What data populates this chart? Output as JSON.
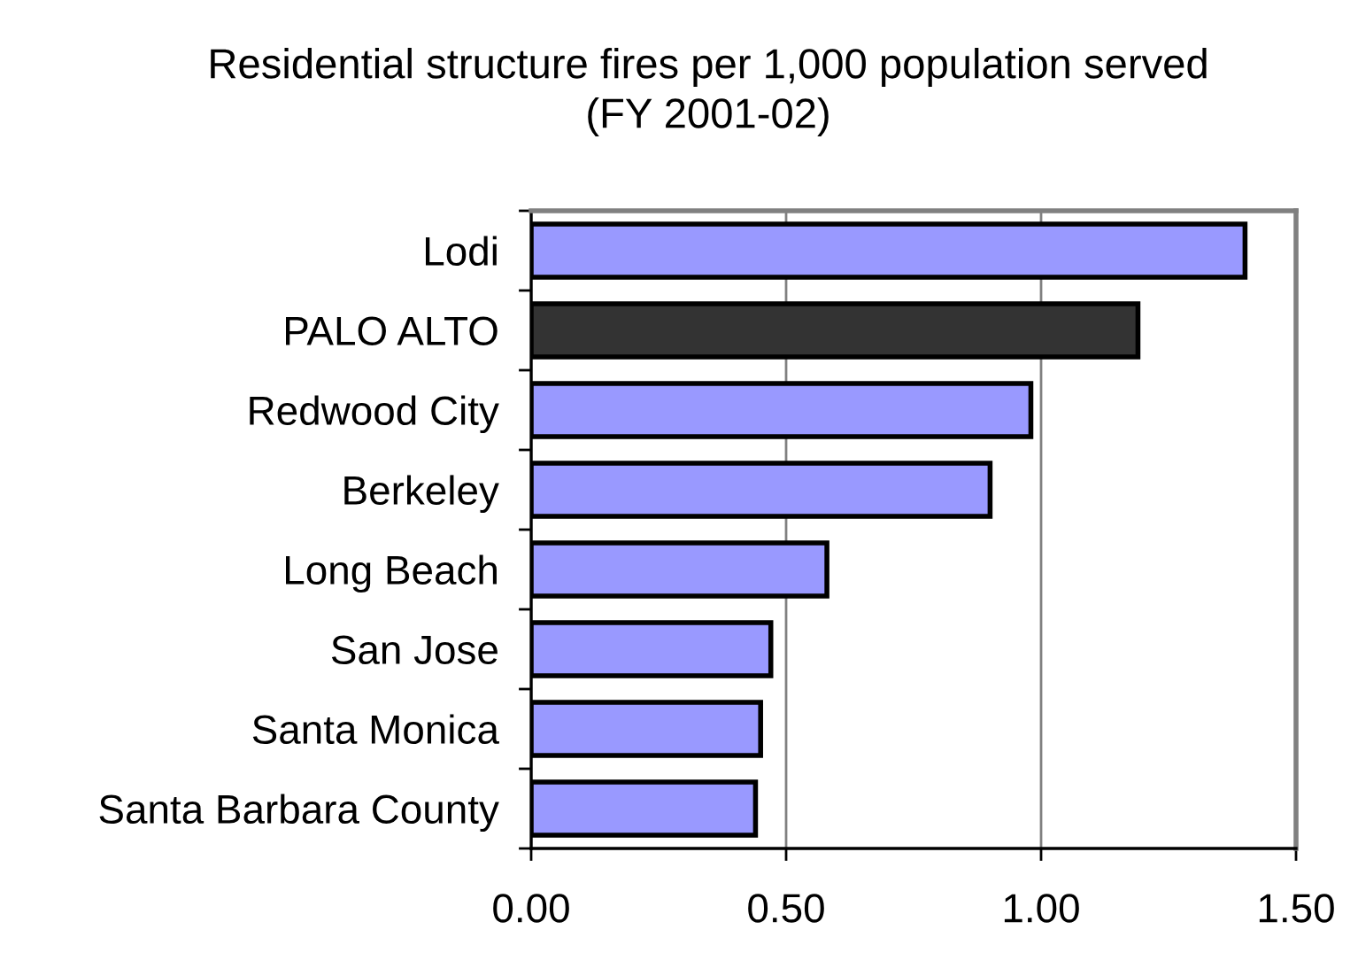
{
  "chart_data": {
    "type": "bar",
    "orientation": "horizontal",
    "title": "Residential structure fires per 1,000 population served",
    "subtitle": "(FY 2001-02)",
    "categories": [
      "Lodi",
      "PALO ALTO",
      "Redwood City",
      "Berkeley",
      "Long Beach",
      "San Jose",
      "Santa Monica",
      "Santa Barbara County"
    ],
    "values": [
      1.4,
      1.19,
      0.98,
      0.9,
      0.58,
      0.47,
      0.45,
      0.44
    ],
    "colors": [
      "#9999ff",
      "#333333",
      "#9999ff",
      "#9999ff",
      "#9999ff",
      "#9999ff",
      "#9999ff",
      "#9999ff"
    ],
    "xlim": [
      0,
      1.5
    ],
    "xticks": [
      {
        "value": 0,
        "label": "0.00"
      },
      {
        "value": 0.5,
        "label": "0.50"
      },
      {
        "value": 1,
        "label": "1.00"
      },
      {
        "value": 1.5,
        "label": "1.50"
      }
    ],
    "grid": "x"
  }
}
